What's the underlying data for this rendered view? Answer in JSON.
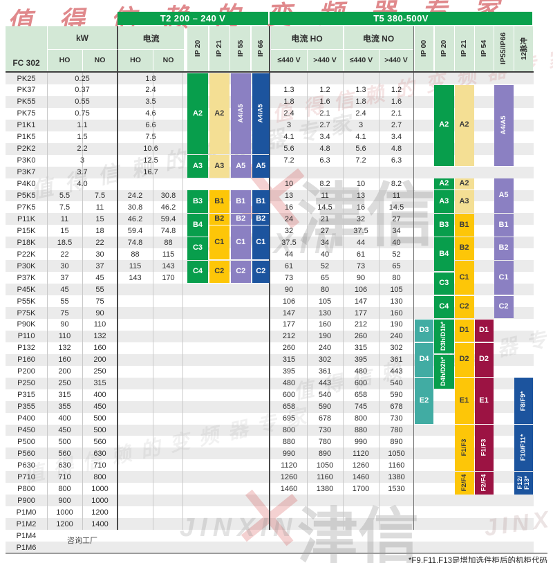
{
  "header": {
    "t2_bar": "T2 200 – 240 V",
    "t5_bar": "T5 380-500V",
    "fc": "FC 302",
    "kw": "kW",
    "current": "电流",
    "ho": "HO",
    "no": "NO",
    "current_ho": "电流 HO",
    "current_no": "电流 NO",
    "le440": "≤440 V",
    "gt440": ">440 V",
    "t2_ips": [
      "IP 20",
      "IP 21",
      "IP 55",
      "IP 66"
    ],
    "t5_ips": [
      "IP 00",
      "IP 20",
      "IP 21",
      "IP 54",
      "IP55/IP66",
      "12脉冲"
    ]
  },
  "colors": {
    "headerBar": "#0aa04c",
    "headerBg": "#d3e8d6",
    "stripe": "#ebebeb",
    "green": "#089e4c",
    "paleYellow": "#f4df94",
    "gold": "#fdc608",
    "purple": "#8b80c2",
    "blue": "#1c549e",
    "teal": "#41aca3",
    "crimson": "#9c1343"
  },
  "rows": [
    [
      "PK25",
      [
        "0.25"
      ],
      [
        "1.8"
      ],
      []
    ],
    [
      "PK37",
      [
        "0.37"
      ],
      [
        "2.4"
      ],
      [
        "1.3",
        "1.2",
        "1.3",
        "1.2"
      ]
    ],
    [
      "PK55",
      [
        "0.55"
      ],
      [
        "3.5"
      ],
      [
        "1.8",
        "1.6",
        "1.8",
        "1.6"
      ]
    ],
    [
      "PK75",
      [
        "0.75"
      ],
      [
        "4.6"
      ],
      [
        "2.4",
        "2.1",
        "2.4",
        "2.1"
      ]
    ],
    [
      "P1K1",
      [
        "1.1"
      ],
      [
        "6.6"
      ],
      [
        "3",
        "2.7",
        "3",
        "2.7"
      ]
    ],
    [
      "P1K5",
      [
        "1.5"
      ],
      [
        "7.5"
      ],
      [
        "4.1",
        "3.4",
        "4.1",
        "3.4"
      ]
    ],
    [
      "P2K2",
      [
        "2.2"
      ],
      [
        "10.6"
      ],
      [
        "5.6",
        "4.8",
        "5.6",
        "4.8"
      ]
    ],
    [
      "P3K0",
      [
        "3"
      ],
      [
        "12.5"
      ],
      [
        "7.2",
        "6.3",
        "7.2",
        "6.3"
      ]
    ],
    [
      "P3K7",
      [
        "3.7"
      ],
      [
        "16.7"
      ],
      []
    ],
    [
      "P4K0",
      [
        "4.0"
      ],
      [],
      [
        "10",
        "8.2",
        "10",
        "8.2"
      ]
    ],
    [
      "P5K5",
      [
        "5.5",
        "7.5"
      ],
      [
        "24.2",
        "30.8"
      ],
      [
        "13",
        "11",
        "13",
        "11"
      ]
    ],
    [
      "P7K5",
      [
        "7.5",
        "11"
      ],
      [
        "30.8",
        "46.2"
      ],
      [
        "16",
        "14.5",
        "16",
        "14.5"
      ]
    ],
    [
      "P11K",
      [
        "11",
        "15"
      ],
      [
        "46.2",
        "59.4"
      ],
      [
        "24",
        "21",
        "32",
        "27"
      ]
    ],
    [
      "P15K",
      [
        "15",
        "18"
      ],
      [
        "59.4",
        "74.8"
      ],
      [
        "32",
        "27",
        "37.5",
        "34"
      ]
    ],
    [
      "P18K",
      [
        "18.5",
        "22"
      ],
      [
        "74.8",
        "88"
      ],
      [
        "37.5",
        "34",
        "44",
        "40"
      ]
    ],
    [
      "P22K",
      [
        "22",
        "30"
      ],
      [
        "88",
        "115"
      ],
      [
        "44",
        "40",
        "61",
        "52"
      ]
    ],
    [
      "P30K",
      [
        "30",
        "37"
      ],
      [
        "115",
        "143"
      ],
      [
        "61",
        "52",
        "73",
        "65"
      ]
    ],
    [
      "P37K",
      [
        "37",
        "45"
      ],
      [
        "143",
        "170"
      ],
      [
        "73",
        "65",
        "90",
        "80"
      ]
    ],
    [
      "P45K",
      [
        "45",
        "55"
      ],
      [],
      [
        "90",
        "80",
        "106",
        "105"
      ]
    ],
    [
      "P55K",
      [
        "55",
        "75"
      ],
      [],
      [
        "106",
        "105",
        "147",
        "130"
      ]
    ],
    [
      "P75K",
      [
        "75",
        "90"
      ],
      [],
      [
        "147",
        "130",
        "177",
        "160"
      ]
    ],
    [
      "P90K",
      [
        "90",
        "110"
      ],
      [],
      [
        "177",
        "160",
        "212",
        "190"
      ]
    ],
    [
      "P110",
      [
        "110",
        "132"
      ],
      [],
      [
        "212",
        "190",
        "260",
        "240"
      ]
    ],
    [
      "P132",
      [
        "132",
        "160"
      ],
      [],
      [
        "260",
        "240",
        "315",
        "302"
      ]
    ],
    [
      "P160",
      [
        "160",
        "200"
      ],
      [],
      [
        "315",
        "302",
        "395",
        "361"
      ]
    ],
    [
      "P200",
      [
        "200",
        "250"
      ],
      [],
      [
        "395",
        "361",
        "480",
        "443"
      ]
    ],
    [
      "P250",
      [
        "250",
        "315"
      ],
      [],
      [
        "480",
        "443",
        "600",
        "540"
      ]
    ],
    [
      "P315",
      [
        "315",
        "400"
      ],
      [],
      [
        "600",
        "540",
        "658",
        "590"
      ]
    ],
    [
      "P355",
      [
        "355",
        "450"
      ],
      [],
      [
        "658",
        "590",
        "745",
        "678"
      ]
    ],
    [
      "P400",
      [
        "400",
        "500"
      ],
      [],
      [
        "695",
        "678",
        "800",
        "730"
      ]
    ],
    [
      "P450",
      [
        "450",
        "500"
      ],
      [],
      [
        "800",
        "730",
        "880",
        "780"
      ]
    ],
    [
      "P500",
      [
        "500",
        "560"
      ],
      [],
      [
        "880",
        "780",
        "990",
        "890"
      ]
    ],
    [
      "P560",
      [
        "560",
        "630"
      ],
      [],
      [
        "990",
        "890",
        "1120",
        "1050"
      ]
    ],
    [
      "P630",
      [
        "630",
        "710"
      ],
      [],
      [
        "1120",
        "1050",
        "1260",
        "1160"
      ]
    ],
    [
      "P710",
      [
        "710",
        "800"
      ],
      [],
      [
        "1260",
        "1160",
        "1460",
        "1380"
      ]
    ],
    [
      "P800",
      [
        "800",
        "1000"
      ],
      [],
      [
        "1460",
        "1380",
        "1700",
        "1530"
      ]
    ],
    [
      "P900",
      [
        "900",
        "1000"
      ],
      [],
      []
    ],
    [
      "P1M0",
      [
        "1000",
        "1200"
      ],
      [],
      []
    ],
    [
      "P1M2",
      [
        "1200",
        "1400"
      ],
      [],
      []
    ],
    [
      "P1M4",
      null,
      [],
      []
    ],
    [
      "P1M6",
      null,
      [],
      []
    ]
  ],
  "blocks": [
    [
      "t2_ip20",
      0,
      6,
      "green",
      "A2",
      0,
      0
    ],
    [
      "t2_ip21",
      0,
      6,
      "paleYellow",
      "A2",
      0,
      1
    ],
    [
      "t2_ip55",
      0,
      6,
      "purple",
      "A4/A5",
      1,
      0
    ],
    [
      "t2_ip66",
      0,
      6,
      "blue",
      "A4/A5",
      1,
      0
    ],
    [
      "t2_ip20",
      7,
      8,
      "green",
      "A3",
      0,
      0
    ],
    [
      "t2_ip21",
      7,
      8,
      "paleYellow",
      "A3",
      0,
      1
    ],
    [
      "t2_ip55",
      7,
      8,
      "purple",
      "A5",
      0,
      0
    ],
    [
      "t2_ip66",
      7,
      8,
      "blue",
      "A5",
      0,
      0
    ],
    [
      "t2_ip20",
      10,
      11,
      "green",
      "B3",
      0,
      0
    ],
    [
      "t2_ip21",
      10,
      11,
      "gold",
      "B1",
      0,
      1
    ],
    [
      "t2_ip55",
      10,
      11,
      "purple",
      "B1",
      0,
      0
    ],
    [
      "t2_ip66",
      10,
      11,
      "blue",
      "B1",
      0,
      0
    ],
    [
      "t2_ip20",
      12,
      13,
      "green",
      "B4",
      0,
      0
    ],
    [
      "t2_ip21",
      12,
      12,
      "gold",
      "B2",
      0,
      1
    ],
    [
      "t2_ip55",
      12,
      12,
      "purple",
      "B2",
      0,
      0
    ],
    [
      "t2_ip66",
      12,
      12,
      "blue",
      "B2",
      0,
      0
    ],
    [
      "t2_ip20",
      14,
      15,
      "green",
      "C3",
      0,
      0
    ],
    [
      "t2_ip21",
      13,
      15,
      "gold",
      "C1",
      0,
      1
    ],
    [
      "t2_ip55",
      13,
      15,
      "purple",
      "C1",
      0,
      0
    ],
    [
      "t2_ip66",
      13,
      15,
      "blue",
      "C1",
      0,
      0
    ],
    [
      "t2_ip20",
      16,
      17,
      "green",
      "C4",
      0,
      0
    ],
    [
      "t2_ip21",
      16,
      17,
      "gold",
      "C2",
      0,
      1
    ],
    [
      "t2_ip55",
      16,
      17,
      "purple",
      "C2",
      0,
      0
    ],
    [
      "t2_ip66",
      16,
      17,
      "blue",
      "C2",
      0,
      0
    ],
    [
      "t5_ip20",
      1,
      7,
      "green",
      "A2",
      0,
      0
    ],
    [
      "t5_ip21",
      1,
      7,
      "paleYellow",
      "A2",
      0,
      1
    ],
    [
      "t5_ip5566",
      1,
      7,
      "purple",
      "A4/A5",
      1,
      0
    ],
    [
      "t5_ip20",
      9,
      9,
      "green",
      "A2",
      0,
      0
    ],
    [
      "t5_ip21",
      9,
      9,
      "paleYellow",
      "A2",
      0,
      1
    ],
    [
      "t5_ip5566",
      9,
      11,
      "purple",
      "A5",
      0,
      0
    ],
    [
      "t5_ip20",
      10,
      11,
      "green",
      "A3",
      0,
      0
    ],
    [
      "t5_ip21",
      10,
      11,
      "paleYellow",
      "A3",
      0,
      1
    ],
    [
      "t5_ip20",
      12,
      13,
      "green",
      "B3",
      0,
      0
    ],
    [
      "t5_ip21",
      12,
      13,
      "gold",
      "B1",
      0,
      1
    ],
    [
      "t5_ip5566",
      12,
      13,
      "purple",
      "B1",
      0,
      0
    ],
    [
      "t5_ip20",
      14,
      16,
      "green",
      "B4",
      0,
      0
    ],
    [
      "t5_ip21",
      14,
      15,
      "gold",
      "B2",
      0,
      1
    ],
    [
      "t5_ip5566",
      14,
      15,
      "purple",
      "B2",
      0,
      0
    ],
    [
      "t5_ip20",
      17,
      18,
      "green",
      "C3",
      0,
      0
    ],
    [
      "t5_ip21",
      16,
      18,
      "gold",
      "C1",
      0,
      1
    ],
    [
      "t5_ip5566",
      16,
      18,
      "purple",
      "C1",
      0,
      0
    ],
    [
      "t5_ip20",
      19,
      20,
      "green",
      "C4",
      0,
      0
    ],
    [
      "t5_ip21",
      19,
      20,
      "gold",
      "C2",
      0,
      1
    ],
    [
      "t5_ip5566",
      19,
      20,
      "purple",
      "C2",
      0,
      0
    ],
    [
      "t5_ip00",
      21,
      22,
      "teal",
      "D3",
      0,
      0
    ],
    [
      "t5_ip20",
      21,
      23,
      "green",
      "D3h/D1h*",
      1,
      0
    ],
    [
      "t5_ip21",
      21,
      22,
      "gold",
      "D1",
      0,
      1
    ],
    [
      "t5_ip54",
      21,
      22,
      "crimson",
      "D1",
      0,
      0
    ],
    [
      "t5_ip00",
      23,
      25,
      "teal",
      "D4",
      0,
      0
    ],
    [
      "t5_ip20",
      24,
      26,
      "green",
      "D4h/D2h*",
      1,
      0
    ],
    [
      "t5_ip21",
      23,
      25,
      "gold",
      "D2",
      0,
      1
    ],
    [
      "t5_ip54",
      23,
      25,
      "crimson",
      "D2",
      0,
      0
    ],
    [
      "t5_ip00",
      26,
      29,
      "teal",
      "E2",
      0,
      0
    ],
    [
      "t5_ip21",
      26,
      29,
      "gold",
      "E1",
      0,
      1
    ],
    [
      "t5_ip54",
      26,
      29,
      "crimson",
      "E1",
      0,
      0
    ],
    [
      "t5_p12",
      26,
      29,
      "blue",
      "F8/F9*",
      1,
      0
    ],
    [
      "t5_ip21",
      30,
      33,
      "gold",
      "F1/F3",
      1,
      1
    ],
    [
      "t5_ip54",
      30,
      33,
      "crimson",
      "F1/F3",
      1,
      0
    ],
    [
      "t5_p12",
      30,
      33,
      "blue",
      "F10/F11*",
      1,
      0
    ],
    [
      "t5_ip21",
      34,
      35,
      "gold",
      "F2/F4",
      1,
      1
    ],
    [
      "t5_ip54",
      34,
      35,
      "crimson",
      "F2/F4",
      1,
      0
    ],
    [
      "t5_p12",
      34,
      35,
      "blue",
      "F12/ F13*",
      1,
      0
    ]
  ],
  "consult_label": "咨询工厂",
  "footnote": "*F9,F11,F13是增加选件柜后的机柜代码",
  "watermark": {
    "slogan": "值得信赖的变频器专家",
    "brand": "津信",
    "brand_en": "JINXIN",
    "x_mark": "✕"
  }
}
